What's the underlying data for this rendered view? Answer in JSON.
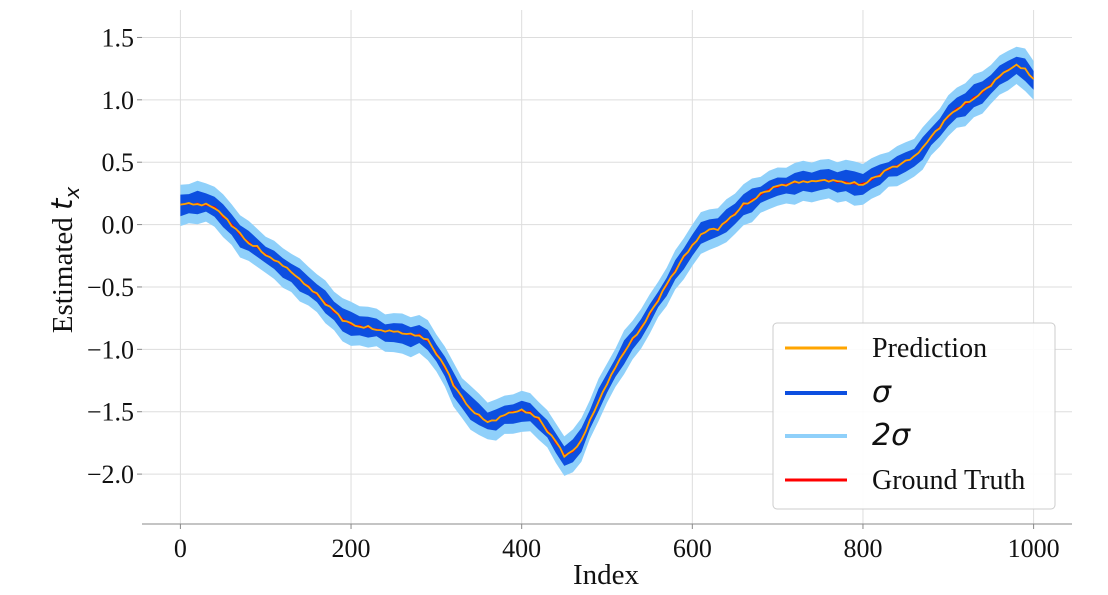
{
  "chart_data": {
    "type": "line",
    "title": "",
    "xlabel": "Index",
    "ylabel_prefix": "Estimated ",
    "ylabel_symbol": "t",
    "ylabel_subscript": "x",
    "xlim": [
      -45,
      1045
    ],
    "ylim": [
      -2.4,
      1.72
    ],
    "xticks": [
      0,
      200,
      400,
      600,
      800,
      1000
    ],
    "xtick_labels": [
      "0",
      "200",
      "400",
      "600",
      "800",
      "1000"
    ],
    "yticks": [
      -2.0,
      -1.5,
      -1.0,
      -0.5,
      0.0,
      0.5,
      1.0,
      1.5
    ],
    "ytick_labels": [
      "−2.0",
      "−1.5",
      "−1.0",
      "−0.5",
      "0.0",
      "0.5",
      "1.0",
      "1.5"
    ],
    "grid": true,
    "legend_position": "bottom-right",
    "colors": {
      "prediction": "#FFA500",
      "sigma": "#0D4FE0",
      "two_sigma": "#8FD0FA",
      "ground_truth": "#FF0000",
      "grid": "#DDDDDD"
    },
    "series": [
      {
        "name": "Prediction",
        "kind": "line"
      },
      {
        "name": "σ",
        "kind": "band",
        "half_width": 0.08
      },
      {
        "name": "2σ",
        "kind": "band",
        "half_width": 0.16
      },
      {
        "name": "Ground Truth",
        "kind": "line"
      }
    ],
    "x": [
      0,
      10,
      20,
      30,
      40,
      50,
      60,
      70,
      80,
      90,
      100,
      110,
      120,
      130,
      140,
      150,
      160,
      170,
      180,
      190,
      200,
      210,
      220,
      230,
      240,
      250,
      260,
      270,
      280,
      290,
      300,
      310,
      320,
      330,
      340,
      350,
      360,
      370,
      380,
      390,
      400,
      410,
      420,
      430,
      440,
      450,
      460,
      470,
      480,
      490,
      500,
      510,
      520,
      530,
      540,
      550,
      560,
      570,
      580,
      590,
      600,
      610,
      620,
      630,
      640,
      650,
      660,
      670,
      680,
      690,
      700,
      710,
      720,
      730,
      740,
      750,
      760,
      770,
      780,
      790,
      800,
      810,
      820,
      830,
      840,
      850,
      860,
      870,
      880,
      890,
      900,
      910,
      920,
      930,
      940,
      950,
      960,
      970,
      980,
      990,
      1000
    ],
    "y": [
      0.16,
      0.17,
      0.17,
      0.16,
      0.14,
      0.06,
      0.0,
      -0.08,
      -0.14,
      -0.18,
      -0.24,
      -0.29,
      -0.33,
      -0.38,
      -0.44,
      -0.49,
      -0.56,
      -0.63,
      -0.7,
      -0.76,
      -0.8,
      -0.81,
      -0.82,
      -0.84,
      -0.86,
      -0.86,
      -0.87,
      -0.88,
      -0.88,
      -0.93,
      -1.03,
      -1.15,
      -1.28,
      -1.39,
      -1.47,
      -1.53,
      -1.58,
      -1.57,
      -1.53,
      -1.5,
      -1.49,
      -1.5,
      -1.56,
      -1.65,
      -1.75,
      -1.85,
      -1.82,
      -1.72,
      -1.57,
      -1.42,
      -1.28,
      -1.15,
      -1.02,
      -0.92,
      -0.82,
      -0.72,
      -0.6,
      -0.49,
      -0.37,
      -0.26,
      -0.16,
      -0.08,
      -0.04,
      -0.04,
      0.02,
      0.09,
      0.16,
      0.2,
      0.24,
      0.28,
      0.3,
      0.32,
      0.34,
      0.35,
      0.35,
      0.35,
      0.35,
      0.34,
      0.34,
      0.33,
      0.33,
      0.36,
      0.4,
      0.44,
      0.47,
      0.51,
      0.55,
      0.62,
      0.7,
      0.78,
      0.86,
      0.93,
      0.97,
      1.02,
      1.06,
      1.12,
      1.18,
      1.24,
      1.28,
      1.25,
      1.17
    ]
  },
  "legend": {
    "prediction_label": "Prediction",
    "sigma_label": "σ",
    "two_sigma_label": "2σ",
    "ground_truth_label": "Ground Truth"
  }
}
